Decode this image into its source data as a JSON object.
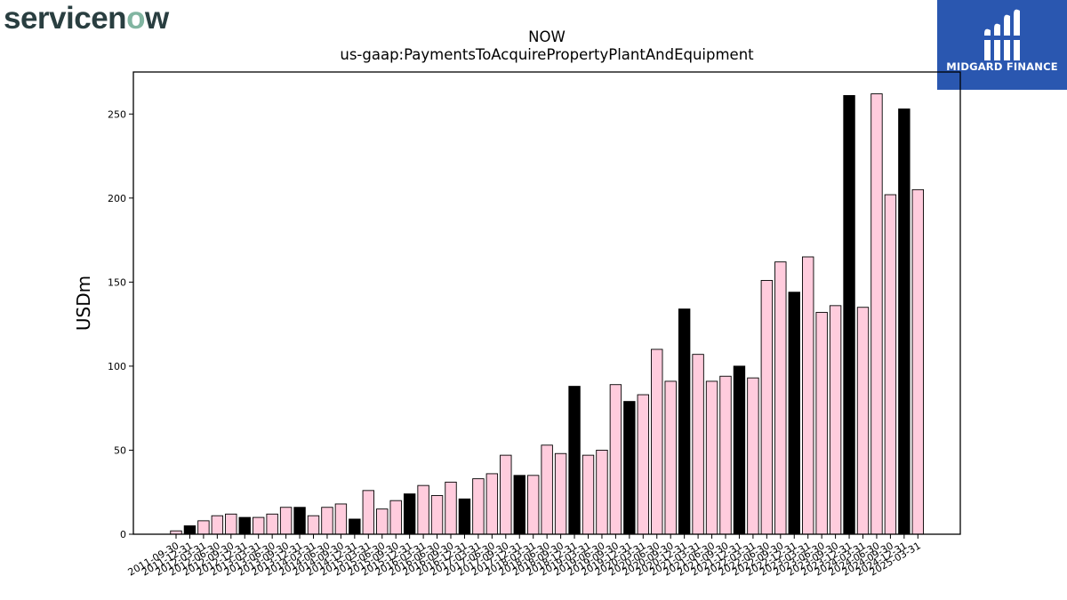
{
  "logos": {
    "left_text_pre": "servicen",
    "left_text_accent": "o",
    "left_text_post": "w",
    "right_text": "MIDGARD FINANCE"
  },
  "colors": {
    "bar_light": "#ffccdd",
    "bar_dark": "#000000",
    "midgard_bg": "#2a57b0"
  },
  "chart_data": {
    "type": "bar",
    "title": "NOW",
    "subtitle": "us-gaap:PaymentsToAcquirePropertyPlantAndEquipment",
    "xlabel": "",
    "ylabel": "USDm",
    "ylim": [
      0,
      275
    ],
    "yticks": [
      0,
      50,
      100,
      150,
      200,
      250
    ],
    "grid": false,
    "bars": [
      {
        "label": "2011-09-30",
        "value": 2,
        "style": "light"
      },
      {
        "label": "2011-12-31",
        "value": 5,
        "style": "dark"
      },
      {
        "label": "2012-03-31",
        "value": 8,
        "style": "light"
      },
      {
        "label": "2012-06-30",
        "value": 11,
        "style": "light"
      },
      {
        "label": "2012-09-30",
        "value": 12,
        "style": "light"
      },
      {
        "label": "2012-12-31",
        "value": 10,
        "style": "dark"
      },
      {
        "label": "2013-03-31",
        "value": 10,
        "style": "light"
      },
      {
        "label": "2013-06-30",
        "value": 12,
        "style": "light"
      },
      {
        "label": "2013-09-30",
        "value": 16,
        "style": "light"
      },
      {
        "label": "2013-12-31",
        "value": 16,
        "style": "dark"
      },
      {
        "label": "2014-03-31",
        "value": 11,
        "style": "light"
      },
      {
        "label": "2014-06-30",
        "value": 16,
        "style": "light"
      },
      {
        "label": "2014-09-30",
        "value": 18,
        "style": "light"
      },
      {
        "label": "2014-12-31",
        "value": 9,
        "style": "dark"
      },
      {
        "label": "2015-03-31",
        "value": 26,
        "style": "light"
      },
      {
        "label": "2015-06-30",
        "value": 15,
        "style": "light"
      },
      {
        "label": "2015-09-30",
        "value": 20,
        "style": "light"
      },
      {
        "label": "2015-12-31",
        "value": 24,
        "style": "dark"
      },
      {
        "label": "2016-03-31",
        "value": 29,
        "style": "light"
      },
      {
        "label": "2016-06-30",
        "value": 23,
        "style": "light"
      },
      {
        "label": "2016-09-30",
        "value": 31,
        "style": "light"
      },
      {
        "label": "2016-12-31",
        "value": 21,
        "style": "dark"
      },
      {
        "label": "2017-03-31",
        "value": 33,
        "style": "light"
      },
      {
        "label": "2017-06-30",
        "value": 36,
        "style": "light"
      },
      {
        "label": "2017-09-30",
        "value": 47,
        "style": "light"
      },
      {
        "label": "2017-12-31",
        "value": 35,
        "style": "dark"
      },
      {
        "label": "2018-03-31",
        "value": 35,
        "style": "light"
      },
      {
        "label": "2018-06-30",
        "value": 53,
        "style": "light"
      },
      {
        "label": "2018-09-30",
        "value": 48,
        "style": "light"
      },
      {
        "label": "2018-12-31",
        "value": 88,
        "style": "dark"
      },
      {
        "label": "2019-03-31",
        "value": 47,
        "style": "light"
      },
      {
        "label": "2019-06-30",
        "value": 50,
        "style": "light"
      },
      {
        "label": "2019-09-30",
        "value": 89,
        "style": "light"
      },
      {
        "label": "2019-12-31",
        "value": 79,
        "style": "dark"
      },
      {
        "label": "2020-03-31",
        "value": 83,
        "style": "light"
      },
      {
        "label": "2020-06-30",
        "value": 110,
        "style": "light"
      },
      {
        "label": "2020-09-30",
        "value": 91,
        "style": "light"
      },
      {
        "label": "2020-12-31",
        "value": 134,
        "style": "dark"
      },
      {
        "label": "2021-03-31",
        "value": 107,
        "style": "light"
      },
      {
        "label": "2021-06-30",
        "value": 91,
        "style": "light"
      },
      {
        "label": "2021-09-30",
        "value": 94,
        "style": "light"
      },
      {
        "label": "2021-12-31",
        "value": 100,
        "style": "dark"
      },
      {
        "label": "2022-03-31",
        "value": 93,
        "style": "light"
      },
      {
        "label": "2022-06-30",
        "value": 151,
        "style": "light"
      },
      {
        "label": "2022-09-30",
        "value": 162,
        "style": "light"
      },
      {
        "label": "2022-12-31",
        "value": 144,
        "style": "dark"
      },
      {
        "label": "2023-03-31",
        "value": 165,
        "style": "light"
      },
      {
        "label": "2023-06-30",
        "value": 132,
        "style": "light"
      },
      {
        "label": "2023-09-30",
        "value": 136,
        "style": "light"
      },
      {
        "label": "2023-12-31",
        "value": 261,
        "style": "dark"
      },
      {
        "label": "2024-03-31",
        "value": 135,
        "style": "light"
      },
      {
        "label": "2024-06-30",
        "value": 262,
        "style": "light"
      },
      {
        "label": "2024-09-30",
        "value": 202,
        "style": "light"
      },
      {
        "label": "2024-12-31",
        "value": 253,
        "style": "dark"
      },
      {
        "label": "2025-03-31",
        "value": 205,
        "style": "light"
      }
    ]
  }
}
